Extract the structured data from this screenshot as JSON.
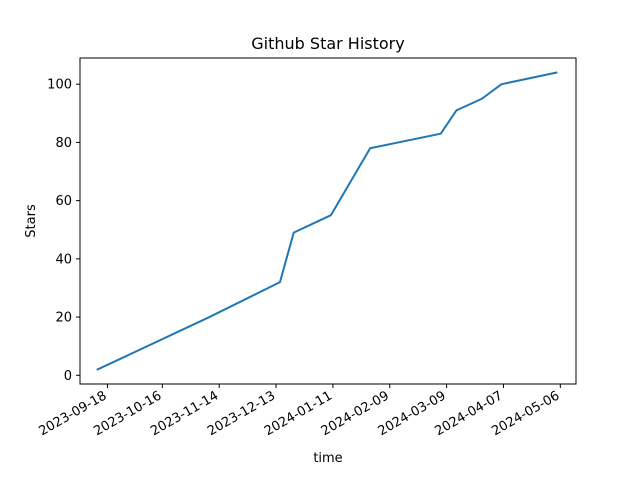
{
  "chart_data": {
    "type": "line",
    "title": "Github Star History",
    "xlabel": "time",
    "ylabel": "Stars",
    "xlim": [
      "2023-09-04",
      "2024-05-14"
    ],
    "ylim": [
      -3,
      109
    ],
    "grid": false,
    "legend": "none",
    "x_ticks": [
      "2023-09-18",
      "2023-10-16",
      "2023-11-14",
      "2023-12-13",
      "2024-01-11",
      "2024-02-09",
      "2024-03-09",
      "2024-04-07",
      "2024-05-06"
    ],
    "y_ticks": [
      0,
      20,
      40,
      60,
      80,
      100
    ],
    "series": [
      {
        "color": "#1f77b4",
        "x": [
          "2023-09-13",
          "2023-11-09",
          "2023-12-15",
          "2023-12-22",
          "2024-01-10",
          "2024-01-30",
          "2024-03-06",
          "2024-03-14",
          "2024-03-27",
          "2024-04-06",
          "2024-05-04"
        ],
        "y": [
          2,
          20,
          32,
          49,
          55,
          78,
          83,
          91,
          95,
          100,
          104
        ]
      }
    ]
  }
}
